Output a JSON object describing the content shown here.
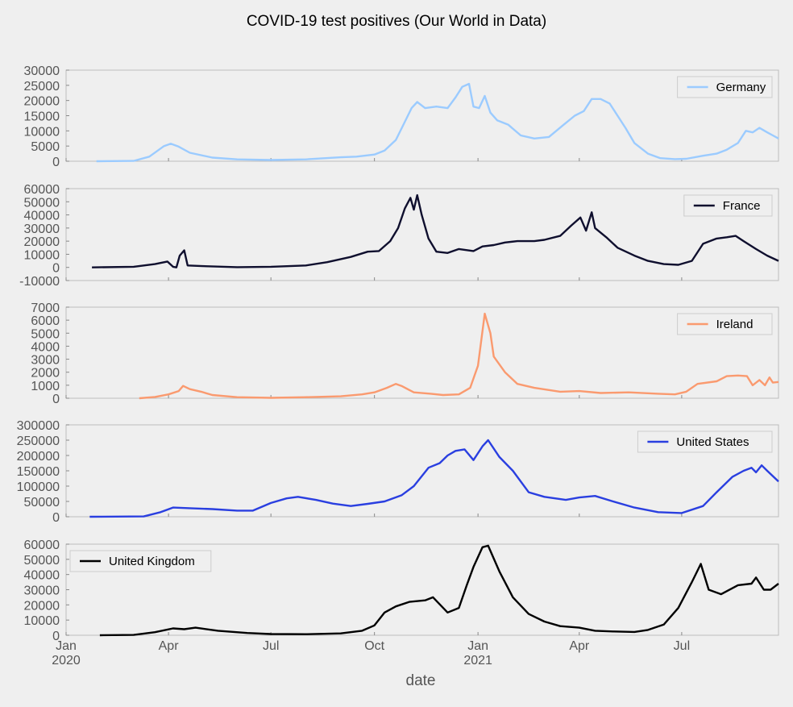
{
  "figure": {
    "title": "COVID-19 test positives (Our World in Data)",
    "xlabel": "date",
    "x_ticks": [
      {
        "date": "2020-01-01",
        "label": "Jan",
        "sub": "2020"
      },
      {
        "date": "2020-04-01",
        "label": "Apr",
        "sub": ""
      },
      {
        "date": "2020-07-01",
        "label": "Jul",
        "sub": ""
      },
      {
        "date": "2020-10-01",
        "label": "Oct",
        "sub": ""
      },
      {
        "date": "2021-01-01",
        "label": "Jan",
        "sub": "2021"
      },
      {
        "date": "2021-04-01",
        "label": "Apr",
        "sub": ""
      },
      {
        "date": "2021-07-01",
        "label": "Jul",
        "sub": ""
      }
    ],
    "x_range": [
      "2020-01-01",
      "2021-09-25"
    ],
    "colors": {
      "background": "#efefef",
      "axes_edge": "#bcbcbc",
      "tick_text": "#555555",
      "title_text": "#000000"
    }
  },
  "chart_data": [
    {
      "type": "line",
      "series_name": "Germany",
      "color": "#9bcbff",
      "legend_position": "top-right",
      "ylim": [
        0,
        30000
      ],
      "yticks": [
        0,
        5000,
        10000,
        15000,
        20000,
        25000,
        30000
      ],
      "points": [
        [
          "2020-01-28",
          0
        ],
        [
          "2020-03-01",
          100
        ],
        [
          "2020-03-15",
          1500
        ],
        [
          "2020-03-28",
          5000
        ],
        [
          "2020-04-03",
          5800
        ],
        [
          "2020-04-10",
          4800
        ],
        [
          "2020-04-20",
          2800
        ],
        [
          "2020-05-10",
          1200
        ],
        [
          "2020-06-01",
          600
        ],
        [
          "2020-07-01",
          400
        ],
        [
          "2020-08-01",
          600
        ],
        [
          "2020-09-01",
          1300
        ],
        [
          "2020-09-15",
          1500
        ],
        [
          "2020-10-01",
          2200
        ],
        [
          "2020-10-10",
          3500
        ],
        [
          "2020-10-20",
          7000
        ],
        [
          "2020-10-28",
          13000
        ],
        [
          "2020-11-03",
          17500
        ],
        [
          "2020-11-08",
          19500
        ],
        [
          "2020-11-15",
          17500
        ],
        [
          "2020-11-25",
          18000
        ],
        [
          "2020-12-05",
          17500
        ],
        [
          "2020-12-12",
          21000
        ],
        [
          "2020-12-18",
          24500
        ],
        [
          "2020-12-24",
          25500
        ],
        [
          "2020-12-28",
          18000
        ],
        [
          "2021-01-02",
          17500
        ],
        [
          "2021-01-07",
          21500
        ],
        [
          "2021-01-12",
          16000
        ],
        [
          "2021-01-18",
          13500
        ],
        [
          "2021-01-28",
          12000
        ],
        [
          "2021-02-08",
          8500
        ],
        [
          "2021-02-20",
          7500
        ],
        [
          "2021-03-05",
          8000
        ],
        [
          "2021-03-18",
          12000
        ],
        [
          "2021-03-28",
          15000
        ],
        [
          "2021-04-05",
          16500
        ],
        [
          "2021-04-12",
          20500
        ],
        [
          "2021-04-20",
          20500
        ],
        [
          "2021-04-28",
          19000
        ],
        [
          "2021-05-05",
          15000
        ],
        [
          "2021-05-12",
          11000
        ],
        [
          "2021-05-20",
          6000
        ],
        [
          "2021-06-01",
          2500
        ],
        [
          "2021-06-12",
          1000
        ],
        [
          "2021-06-25",
          700
        ],
        [
          "2021-07-05",
          800
        ],
        [
          "2021-07-20",
          1800
        ],
        [
          "2021-08-01",
          2500
        ],
        [
          "2021-08-10",
          3800
        ],
        [
          "2021-08-20",
          6000
        ],
        [
          "2021-08-27",
          10000
        ],
        [
          "2021-09-02",
          9500
        ],
        [
          "2021-09-08",
          11000
        ],
        [
          "2021-09-15",
          9500
        ],
        [
          "2021-09-20",
          8500
        ],
        [
          "2021-09-25",
          7500
        ]
      ]
    },
    {
      "type": "line",
      "series_name": "France",
      "color": "#0f0f2e",
      "legend_position": "top-right",
      "ylim": [
        -10000,
        60000
      ],
      "yticks": [
        -10000,
        0,
        10000,
        20000,
        30000,
        40000,
        50000,
        60000
      ],
      "points": [
        [
          "2020-01-24",
          0
        ],
        [
          "2020-03-01",
          500
        ],
        [
          "2020-03-20",
          2500
        ],
        [
          "2020-03-31",
          4500
        ],
        [
          "2020-04-05",
          500
        ],
        [
          "2020-04-08",
          0
        ],
        [
          "2020-04-11",
          9000
        ],
        [
          "2020-04-15",
          13000
        ],
        [
          "2020-04-18",
          1500
        ],
        [
          "2020-05-01",
          1000
        ],
        [
          "2020-06-01",
          200
        ],
        [
          "2020-07-01",
          500
        ],
        [
          "2020-08-01",
          1500
        ],
        [
          "2020-08-20",
          4000
        ],
        [
          "2020-09-10",
          8000
        ],
        [
          "2020-09-25",
          12000
        ],
        [
          "2020-10-05",
          12500
        ],
        [
          "2020-10-15",
          20000
        ],
        [
          "2020-10-22",
          30000
        ],
        [
          "2020-10-28",
          45000
        ],
        [
          "2020-11-02",
          53000
        ],
        [
          "2020-11-05",
          44000
        ],
        [
          "2020-11-08",
          55000
        ],
        [
          "2020-11-12",
          40000
        ],
        [
          "2020-11-18",
          22000
        ],
        [
          "2020-11-25",
          12000
        ],
        [
          "2020-12-05",
          11000
        ],
        [
          "2020-12-15",
          14000
        ],
        [
          "2020-12-28",
          12500
        ],
        [
          "2021-01-05",
          16000
        ],
        [
          "2021-01-15",
          17000
        ],
        [
          "2021-01-25",
          19000
        ],
        [
          "2021-02-05",
          20000
        ],
        [
          "2021-02-20",
          20000
        ],
        [
          "2021-03-01",
          21000
        ],
        [
          "2021-03-15",
          24000
        ],
        [
          "2021-03-25",
          32000
        ],
        [
          "2021-04-02",
          38000
        ],
        [
          "2021-04-07",
          28000
        ],
        [
          "2021-04-12",
          42000
        ],
        [
          "2021-04-15",
          30000
        ],
        [
          "2021-04-25",
          23000
        ],
        [
          "2021-05-05",
          15000
        ],
        [
          "2021-05-20",
          9000
        ],
        [
          "2021-06-01",
          5000
        ],
        [
          "2021-06-15",
          2500
        ],
        [
          "2021-06-28",
          2000
        ],
        [
          "2021-07-10",
          5000
        ],
        [
          "2021-07-20",
          18000
        ],
        [
          "2021-08-01",
          22000
        ],
        [
          "2021-08-10",
          23000
        ],
        [
          "2021-08-18",
          24000
        ],
        [
          "2021-08-25",
          20000
        ],
        [
          "2021-09-05",
          14000
        ],
        [
          "2021-09-15",
          9000
        ],
        [
          "2021-09-25",
          5000
        ]
      ]
    },
    {
      "type": "line",
      "series_name": "Ireland",
      "color": "#fa9a6f",
      "legend_position": "top-right",
      "ylim": [
        0,
        7000
      ],
      "yticks": [
        0,
        1000,
        2000,
        3000,
        4000,
        5000,
        6000,
        7000
      ],
      "points": [
        [
          "2020-03-06",
          0
        ],
        [
          "2020-03-20",
          100
        ],
        [
          "2020-04-01",
          300
        ],
        [
          "2020-04-10",
          550
        ],
        [
          "2020-04-14",
          950
        ],
        [
          "2020-04-20",
          700
        ],
        [
          "2020-04-30",
          500
        ],
        [
          "2020-05-10",
          250
        ],
        [
          "2020-06-01",
          80
        ],
        [
          "2020-07-01",
          30
        ],
        [
          "2020-08-01",
          80
        ],
        [
          "2020-09-01",
          150
        ],
        [
          "2020-09-20",
          300
        ],
        [
          "2020-10-01",
          450
        ],
        [
          "2020-10-12",
          800
        ],
        [
          "2020-10-20",
          1100
        ],
        [
          "2020-10-25",
          950
        ],
        [
          "2020-11-05",
          450
        ],
        [
          "2020-11-20",
          350
        ],
        [
          "2020-12-01",
          250
        ],
        [
          "2020-12-15",
          300
        ],
        [
          "2020-12-25",
          800
        ],
        [
          "2021-01-01",
          2500
        ],
        [
          "2021-01-07",
          6500
        ],
        [
          "2021-01-12",
          5000
        ],
        [
          "2021-01-15",
          3200
        ],
        [
          "2021-01-25",
          2000
        ],
        [
          "2021-02-05",
          1100
        ],
        [
          "2021-02-20",
          800
        ],
        [
          "2021-03-15",
          500
        ],
        [
          "2021-04-01",
          550
        ],
        [
          "2021-04-20",
          400
        ],
        [
          "2021-05-15",
          450
        ],
        [
          "2021-06-10",
          350
        ],
        [
          "2021-06-25",
          300
        ],
        [
          "2021-07-05",
          500
        ],
        [
          "2021-07-15",
          1100
        ],
        [
          "2021-08-01",
          1300
        ],
        [
          "2021-08-10",
          1700
        ],
        [
          "2021-08-20",
          1750
        ],
        [
          "2021-08-28",
          1700
        ],
        [
          "2021-09-02",
          1000
        ],
        [
          "2021-09-08",
          1400
        ],
        [
          "2021-09-13",
          1000
        ],
        [
          "2021-09-17",
          1600
        ],
        [
          "2021-09-20",
          1200
        ],
        [
          "2021-09-25",
          1250
        ]
      ]
    },
    {
      "type": "line",
      "series_name": "United States",
      "color": "#2a3fe0",
      "legend_position": "top-right",
      "ylim": [
        0,
        300000
      ],
      "yticks": [
        0,
        50000,
        100000,
        150000,
        200000,
        250000,
        300000
      ],
      "points": [
        [
          "2020-01-22",
          0
        ],
        [
          "2020-03-10",
          1000
        ],
        [
          "2020-03-25",
          15000
        ],
        [
          "2020-04-05",
          30000
        ],
        [
          "2020-04-20",
          28000
        ],
        [
          "2020-05-10",
          25000
        ],
        [
          "2020-06-01",
          20000
        ],
        [
          "2020-06-15",
          20000
        ],
        [
          "2020-07-01",
          45000
        ],
        [
          "2020-07-15",
          60000
        ],
        [
          "2020-07-25",
          65000
        ],
        [
          "2020-08-10",
          55000
        ],
        [
          "2020-08-25",
          43000
        ],
        [
          "2020-09-10",
          35000
        ],
        [
          "2020-09-25",
          42000
        ],
        [
          "2020-10-10",
          50000
        ],
        [
          "2020-10-25",
          70000
        ],
        [
          "2020-11-05",
          100000
        ],
        [
          "2020-11-18",
          160000
        ],
        [
          "2020-11-28",
          175000
        ],
        [
          "2020-12-05",
          200000
        ],
        [
          "2020-12-12",
          215000
        ],
        [
          "2020-12-20",
          220000
        ],
        [
          "2020-12-28",
          185000
        ],
        [
          "2021-01-05",
          230000
        ],
        [
          "2021-01-10",
          250000
        ],
        [
          "2021-01-20",
          195000
        ],
        [
          "2021-02-01",
          150000
        ],
        [
          "2021-02-15",
          80000
        ],
        [
          "2021-03-01",
          65000
        ],
        [
          "2021-03-20",
          55000
        ],
        [
          "2021-04-01",
          63000
        ],
        [
          "2021-04-15",
          68000
        ],
        [
          "2021-05-01",
          50000
        ],
        [
          "2021-05-20",
          30000
        ],
        [
          "2021-06-10",
          15000
        ],
        [
          "2021-07-01",
          12000
        ],
        [
          "2021-07-20",
          35000
        ],
        [
          "2021-08-01",
          80000
        ],
        [
          "2021-08-15",
          130000
        ],
        [
          "2021-08-25",
          150000
        ],
        [
          "2021-09-01",
          160000
        ],
        [
          "2021-09-05",
          145000
        ],
        [
          "2021-09-10",
          168000
        ],
        [
          "2021-09-15",
          150000
        ],
        [
          "2021-09-25",
          115000
        ]
      ]
    },
    {
      "type": "line",
      "series_name": "United Kingdom",
      "color": "#000000",
      "legend_position": "top-left",
      "ylim": [
        0,
        60000
      ],
      "yticks": [
        0,
        10000,
        20000,
        30000,
        40000,
        50000,
        60000
      ],
      "points": [
        [
          "2020-01-31",
          0
        ],
        [
          "2020-03-01",
          200
        ],
        [
          "2020-03-20",
          2000
        ],
        [
          "2020-04-05",
          4500
        ],
        [
          "2020-04-15",
          4000
        ],
        [
          "2020-04-25",
          5000
        ],
        [
          "2020-05-15",
          3000
        ],
        [
          "2020-06-10",
          1500
        ],
        [
          "2020-07-01",
          800
        ],
        [
          "2020-08-01",
          700
        ],
        [
          "2020-09-01",
          1200
        ],
        [
          "2020-09-20",
          3000
        ],
        [
          "2020-10-01",
          6500
        ],
        [
          "2020-10-10",
          15000
        ],
        [
          "2020-10-20",
          19000
        ],
        [
          "2020-11-01",
          22000
        ],
        [
          "2020-11-15",
          23000
        ],
        [
          "2020-11-22",
          25000
        ],
        [
          "2020-12-05",
          15000
        ],
        [
          "2020-12-15",
          18000
        ],
        [
          "2020-12-22",
          33000
        ],
        [
          "2020-12-28",
          45000
        ],
        [
          "2021-01-05",
          58000
        ],
        [
          "2021-01-10",
          59000
        ],
        [
          "2021-01-20",
          42000
        ],
        [
          "2021-02-01",
          25000
        ],
        [
          "2021-02-15",
          14000
        ],
        [
          "2021-03-01",
          9000
        ],
        [
          "2021-03-15",
          6000
        ],
        [
          "2021-04-01",
          5000
        ],
        [
          "2021-04-15",
          3000
        ],
        [
          "2021-05-01",
          2500
        ],
        [
          "2021-05-20",
          2200
        ],
        [
          "2021-06-01",
          3500
        ],
        [
          "2021-06-15",
          7000
        ],
        [
          "2021-06-28",
          18000
        ],
        [
          "2021-07-10",
          35000
        ],
        [
          "2021-07-18",
          47000
        ],
        [
          "2021-07-25",
          30000
        ],
        [
          "2021-08-05",
          27000
        ],
        [
          "2021-08-20",
          33000
        ],
        [
          "2021-09-01",
          34000
        ],
        [
          "2021-09-05",
          38000
        ],
        [
          "2021-09-12",
          30000
        ],
        [
          "2021-09-18",
          30000
        ],
        [
          "2021-09-25",
          34000
        ]
      ]
    }
  ]
}
